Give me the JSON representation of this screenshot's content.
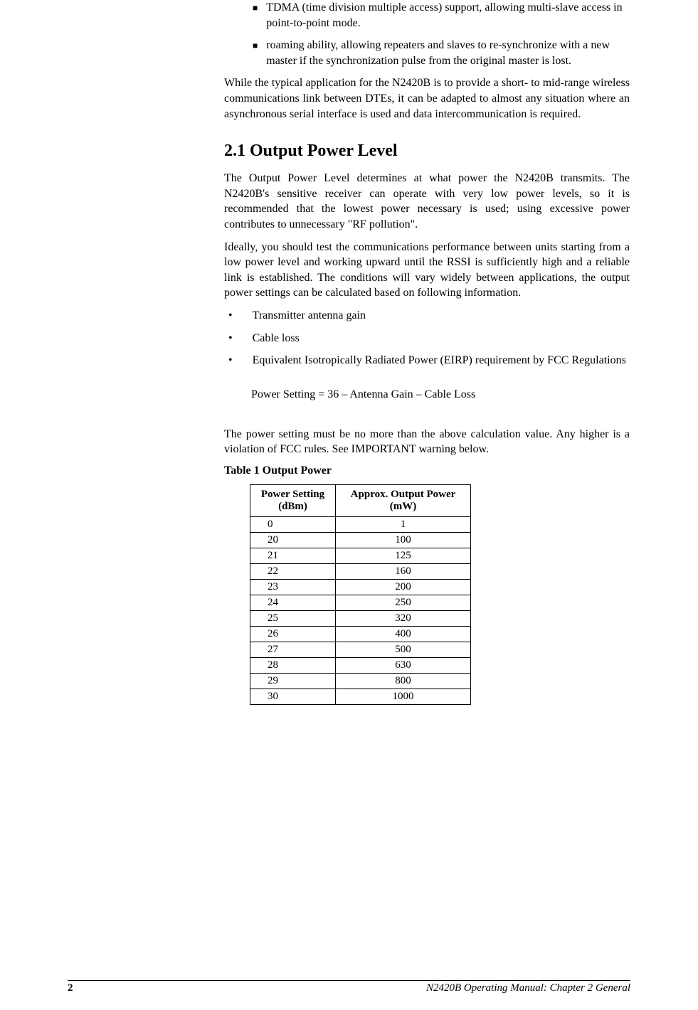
{
  "square_bullets": [
    "TDMA (time division multiple access) support, allowing multi-slave access in point-to-point mode.",
    "roaming ability, allowing repeaters and slaves to re-synchronize with a new master if the synchronization pulse from the original master is lost."
  ],
  "intro_para": "While the typical application for the N2420B is to provide a short- to mid-range wireless communications link between DTEs, it can be adapted to almost any situation where an asynchronous serial interface is used and data intercommunication is required.",
  "heading": "2.1   Output Power Level",
  "para1": "The Output Power Level determines at what power the N2420B transmits. The N2420B's sensitive receiver can operate with very low power levels, so it is recommended that the lowest power necessary is used; using excessive power contributes to unnecessary \"RF pollution\".",
  "para2": "Ideally, you should test the communications performance between units starting from a low power level and working upward until the RSSI is sufficiently high and a reliable link is established.  The conditions will vary widely between applications, the output power settings can be calculated based on following information.",
  "dot_bullets": [
    "Transmitter antenna gain",
    "Cable loss",
    "Equivalent Isotropically Radiated Power (EIRP) requirement by FCC Regulations"
  ],
  "formula": "Power Setting = 36 – Antenna Gain – Cable Loss",
  "para3": "The power setting must be no more than the above calculation value. Any higher is a violation of FCC rules. See IMPORTANT warning below.",
  "table_caption": "Table 1 Output Power",
  "table": {
    "headers": [
      "Power Setting (dBm)",
      "Approx. Output Power (mW)"
    ],
    "rows": [
      [
        "0",
        "1"
      ],
      [
        "20",
        "100"
      ],
      [
        "21",
        "125"
      ],
      [
        "22",
        "160"
      ],
      [
        "23",
        "200"
      ],
      [
        "24",
        "250"
      ],
      [
        "25",
        "320"
      ],
      [
        "26",
        "400"
      ],
      [
        "27",
        "500"
      ],
      [
        "28",
        "630"
      ],
      [
        "29",
        "800"
      ],
      [
        "30",
        "1000"
      ]
    ]
  },
  "footer": {
    "page": "2",
    "title": "N2420B Operating Manual: Chapter 2 General"
  }
}
